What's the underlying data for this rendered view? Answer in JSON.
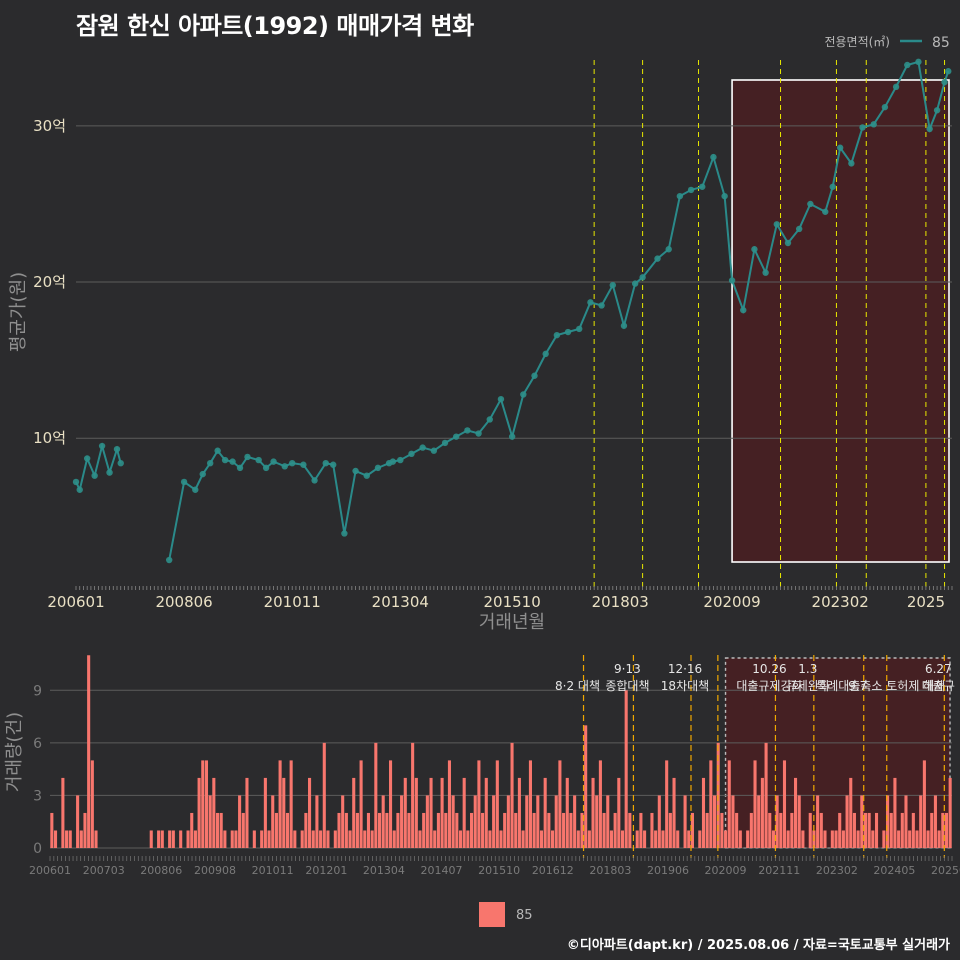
{
  "title": "잠원 한신 아파트(1992) 매매가격 변화",
  "credit": "©디아파트(dapt.kr) / 2025.08.06 / 자료=국토교통부 실거래가",
  "colors": {
    "background": "#2b2b2d",
    "line": "#2a8a8a",
    "point": "#2e8f8a",
    "bar": "#f8766d",
    "event_line_top": "#e8e800",
    "event_line_bottom": "#f0a800",
    "highlight_fill": "#4a1e22",
    "grid": "#5c5c5c"
  },
  "chart_data": [
    {
      "type": "line",
      "name": "price",
      "title": "잠원 한신 아파트(1992) 매매가격 변화",
      "xlabel": "거래년월",
      "ylabel": "평균가(원)",
      "ylim": [
        0.6,
        35.5
      ],
      "y_unit": "억",
      "yticks": [
        10,
        20,
        30
      ],
      "ytick_labels": [
        "10억",
        "20억",
        "30억"
      ],
      "xticks": [
        "200601",
        "200806",
        "201011",
        "201304",
        "201510",
        "201803",
        "202009",
        "202302",
        "2025"
      ],
      "legend_title": "전용면적(㎡)",
      "legend": [
        "85"
      ],
      "event_lines": [
        "2017-08",
        "2018-09",
        "2019-12",
        "2021-10",
        "2023-01",
        "2023-09",
        "2025-01",
        "2025-06"
      ],
      "highlight_range": [
        "2020-09",
        "2025-08"
      ],
      "series": [
        {
          "name": "85",
          "x": [
            "2006-01",
            "2006-02",
            "2006-04",
            "2006-06",
            "2006-08",
            "2006-10",
            "2006-12",
            "2007-01",
            "2008-02",
            "2008-06",
            "2008-09",
            "2008-11",
            "2009-01",
            "2009-03",
            "2009-05",
            "2009-07",
            "2009-09",
            "2009-11",
            "2010-02",
            "2010-04",
            "2010-06",
            "2010-09",
            "2010-11",
            "2011-02",
            "2011-05",
            "2011-08",
            "2011-10",
            "2012-01",
            "2012-04",
            "2012-07",
            "2012-10",
            "2013-01",
            "2013-02",
            "2013-04",
            "2013-07",
            "2013-10",
            "2014-01",
            "2014-04",
            "2014-07",
            "2014-10",
            "2015-01",
            "2015-04",
            "2015-07",
            "2015-10",
            "2016-01",
            "2016-04",
            "2016-07",
            "2016-10",
            "2017-01",
            "2017-04",
            "2017-07",
            "2017-10",
            "2018-01",
            "2018-04",
            "2018-07",
            "2018-09",
            "2019-01",
            "2019-04",
            "2019-07",
            "2019-10",
            "2020-01",
            "2020-04",
            "2020-07",
            "2020-09",
            "2020-12",
            "2021-03",
            "2021-06",
            "2021-09",
            "2021-12",
            "2022-03",
            "2022-06",
            "2022-10",
            "2022-12",
            "2023-02",
            "2023-05",
            "2023-08",
            "2023-11",
            "2024-02",
            "2024-05",
            "2024-08",
            "2024-11",
            "2025-02",
            "2025-04",
            "2025-06",
            "2025-07"
          ],
          "values": [
            7.2,
            6.7,
            8.7,
            7.6,
            9.5,
            7.8,
            9.3,
            8.4,
            2.2,
            7.2,
            6.7,
            7.7,
            8.4,
            9.2,
            8.6,
            8.5,
            8.1,
            8.8,
            8.6,
            8.1,
            8.5,
            8.2,
            8.4,
            8.3,
            7.3,
            8.4,
            8.3,
            3.9,
            7.9,
            7.6,
            8.1,
            8.4,
            8.5,
            8.6,
            9.0,
            9.4,
            9.2,
            9.7,
            10.1,
            10.5,
            10.3,
            11.2,
            12.5,
            10.1,
            12.8,
            14.0,
            15.4,
            16.6,
            16.8,
            17.0,
            18.7,
            18.5,
            19.8,
            17.2,
            19.9,
            20.3,
            21.5,
            22.1,
            25.5,
            25.9,
            26.1,
            28.0,
            25.5,
            20.1,
            18.2,
            22.1,
            20.6,
            23.7,
            22.5,
            23.4,
            25.0,
            24.5,
            26.1,
            28.6,
            27.6,
            29.9,
            30.1,
            31.2,
            32.5,
            33.9,
            34.1,
            29.8,
            31.0,
            32.8,
            33.5
          ]
        }
      ]
    },
    {
      "type": "bar",
      "name": "volume",
      "ylabel": "거래량(건)",
      "ylim": [
        0,
        11.3
      ],
      "yticks": [
        0,
        3,
        6,
        9
      ],
      "ytick_labels": [
        "0",
        "3",
        "6",
        "9"
      ],
      "xticks": [
        "200601",
        "200703",
        "200806",
        "200908",
        "201011",
        "201201",
        "201304",
        "201407",
        "201510",
        "201612",
        "201803",
        "201906",
        "202009",
        "202111",
        "202302",
        "202405",
        "202508"
      ],
      "legend": [
        "85"
      ],
      "events": [
        {
          "date": "2017-08",
          "line1": "",
          "line2": "8·2 대책"
        },
        {
          "date": "2018-09",
          "line1": "9·13",
          "line2": "종합대책"
        },
        {
          "date": "2019-12",
          "line1": "12·16",
          "line2": "18차대책"
        },
        {
          "date": "2020-07",
          "line1": "",
          "line2": ""
        },
        {
          "date": "2021-10",
          "line1": "10.26",
          "line2": "대출규제강화"
        },
        {
          "date": "2022-08",
          "line1": "1.3",
          "line2": "규제완화"
        },
        {
          "date": "2023-09",
          "line1": "",
          "line2": "9.7"
        },
        {
          "date": "2024-03",
          "line1": "",
          "line2": "특례대출축소 토허제 해제"
        },
        {
          "date": "2025-06",
          "line1": "6.27",
          "line2": "대출규"
        }
      ],
      "highlight_range": [
        "2020-09",
        "2025-08"
      ],
      "values": [
        2,
        1,
        0,
        4,
        1,
        1,
        0,
        3,
        1,
        2,
        11,
        5,
        1,
        0,
        0,
        0,
        0,
        0,
        0,
        0,
        0,
        0,
        0,
        0,
        0,
        0,
        0,
        1,
        0,
        1,
        1,
        0,
        1,
        1,
        0,
        1,
        0,
        1,
        2,
        1,
        4,
        5,
        5,
        3,
        4,
        2,
        2,
        1,
        0,
        1,
        1,
        3,
        2,
        4,
        0,
        1,
        0,
        1,
        4,
        1,
        3,
        2,
        5,
        4,
        2,
        5,
        1,
        0,
        1,
        2,
        4,
        1,
        3,
        1,
        6,
        1,
        0,
        1,
        2,
        3,
        2,
        1,
        4,
        2,
        5,
        1,
        2,
        1,
        6,
        2,
        3,
        2,
        5,
        1,
        2,
        3,
        4,
        2,
        6,
        4,
        1,
        2,
        3,
        4,
        1,
        2,
        4,
        2,
        5,
        3,
        2,
        1,
        4,
        1,
        2,
        3,
        5,
        2,
        4,
        1,
        3,
        5,
        1,
        2,
        3,
        6,
        2,
        4,
        1,
        3,
        5,
        2,
        3,
        1,
        4,
        2,
        1,
        3,
        5,
        2,
        4,
        2,
        3,
        1,
        2,
        7,
        1,
        4,
        3,
        5,
        2,
        3,
        1,
        2,
        4,
        1,
        9,
        2,
        0,
        1,
        2,
        1,
        0,
        2,
        1,
        3,
        1,
        5,
        2,
        4,
        1,
        0,
        3,
        1,
        2,
        0,
        1,
        4,
        2,
        5,
        3,
        6,
        2,
        1,
        5,
        3,
        2,
        1,
        0,
        1,
        2,
        5,
        3,
        4,
        6,
        2,
        1,
        3,
        2,
        5,
        1,
        2,
        4,
        3,
        1,
        0,
        2,
        1,
        3,
        2,
        1,
        0,
        1,
        1,
        2,
        1,
        3,
        4,
        2,
        1,
        3,
        2,
        2,
        1,
        2,
        0,
        1,
        3,
        2,
        4,
        1,
        2,
        3,
        1,
        2,
        1,
        3,
        5,
        1,
        2,
        3,
        1,
        2,
        2,
        4
      ]
    }
  ],
  "bottom_legend": {
    "label": "85"
  }
}
